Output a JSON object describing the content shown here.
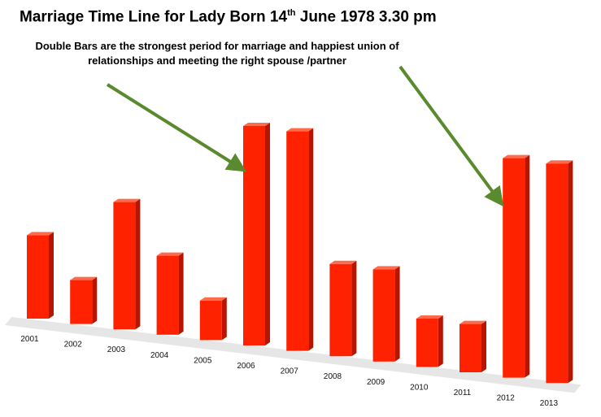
{
  "title": {
    "main": "Marriage Time Line for Lady Born 14",
    "sup": "th",
    "rest": " June 1978 3.30 pm"
  },
  "annotation": {
    "line1": "Double Bars are the strongest period for marriage and happiest union of",
    "line2": "relationships and meeting the right spouse /partner"
  },
  "colors": {
    "bar_front": "#ff2200",
    "bar_side": "#b81500",
    "bar_top": "#ff6a4d",
    "floor": "#e6e6e6",
    "arrow": "#5a8a2e"
  },
  "chart_data": {
    "type": "bar",
    "style": "3d-perspective",
    "categories": [
      "2001",
      "2002",
      "2003",
      "2004",
      "2005",
      "2006",
      "2007",
      "2008",
      "2009",
      "2010",
      "2011",
      "2012",
      "2013"
    ],
    "values": [
      38,
      20,
      58,
      36,
      18,
      100,
      100,
      42,
      42,
      22,
      22,
      100,
      100
    ],
    "ylim": [
      0,
      100
    ],
    "highlighted_periods": [
      [
        "2006",
        "2007"
      ],
      [
        "2012",
        "2013"
      ]
    ]
  }
}
